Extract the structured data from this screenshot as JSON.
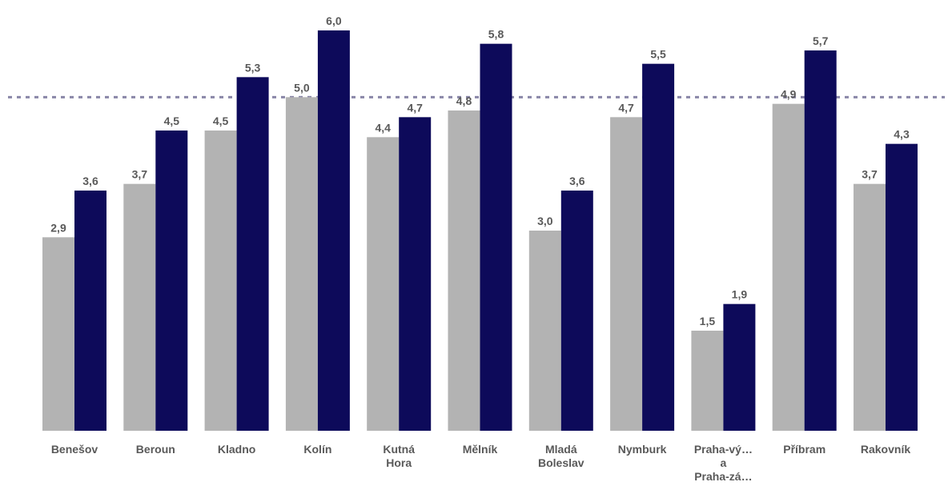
{
  "chart_data": {
    "type": "bar",
    "categories": [
      [
        "Benešov"
      ],
      [
        "Beroun"
      ],
      [
        "Kladno"
      ],
      [
        "Kolín"
      ],
      [
        "Kutná",
        "Hora"
      ],
      [
        "Mělník"
      ],
      [
        "Mladá",
        "Boleslav"
      ],
      [
        "Nymburk"
      ],
      [
        "Praha-vý…",
        "a",
        "Praha-zá…"
      ],
      [
        "Příbram"
      ],
      [
        "Rakovník"
      ]
    ],
    "series": [
      {
        "values": [
          2.9,
          3.7,
          4.5,
          5.0,
          4.4,
          4.8,
          3.0,
          4.7,
          1.5,
          4.9,
          3.7
        ],
        "color": "#b3b3b3"
      },
      {
        "values": [
          3.6,
          4.5,
          5.3,
          6.0,
          4.7,
          5.8,
          3.6,
          5.5,
          1.9,
          5.7,
          4.3
        ],
        "color": "#0d0a5a"
      }
    ],
    "value_labels": [
      [
        "2,9",
        "3,7",
        "4,5",
        "5,0",
        "4,4",
        "4,8",
        "3,0",
        "4,7",
        "1,5",
        "4,9",
        "3,7"
      ],
      [
        "3,6",
        "4,5",
        "5,3",
        "6,0",
        "4,7",
        "5,8",
        "3,6",
        "5,5",
        "1,9",
        "5,7",
        "4,3"
      ]
    ],
    "reference_line": {
      "value": 5.0,
      "style": "dotted",
      "color": "#8a87a8"
    },
    "ylim": [
      0,
      6.0
    ],
    "grid": false,
    "legend": "none",
    "title": "",
    "xlabel": "",
    "ylabel": ""
  }
}
